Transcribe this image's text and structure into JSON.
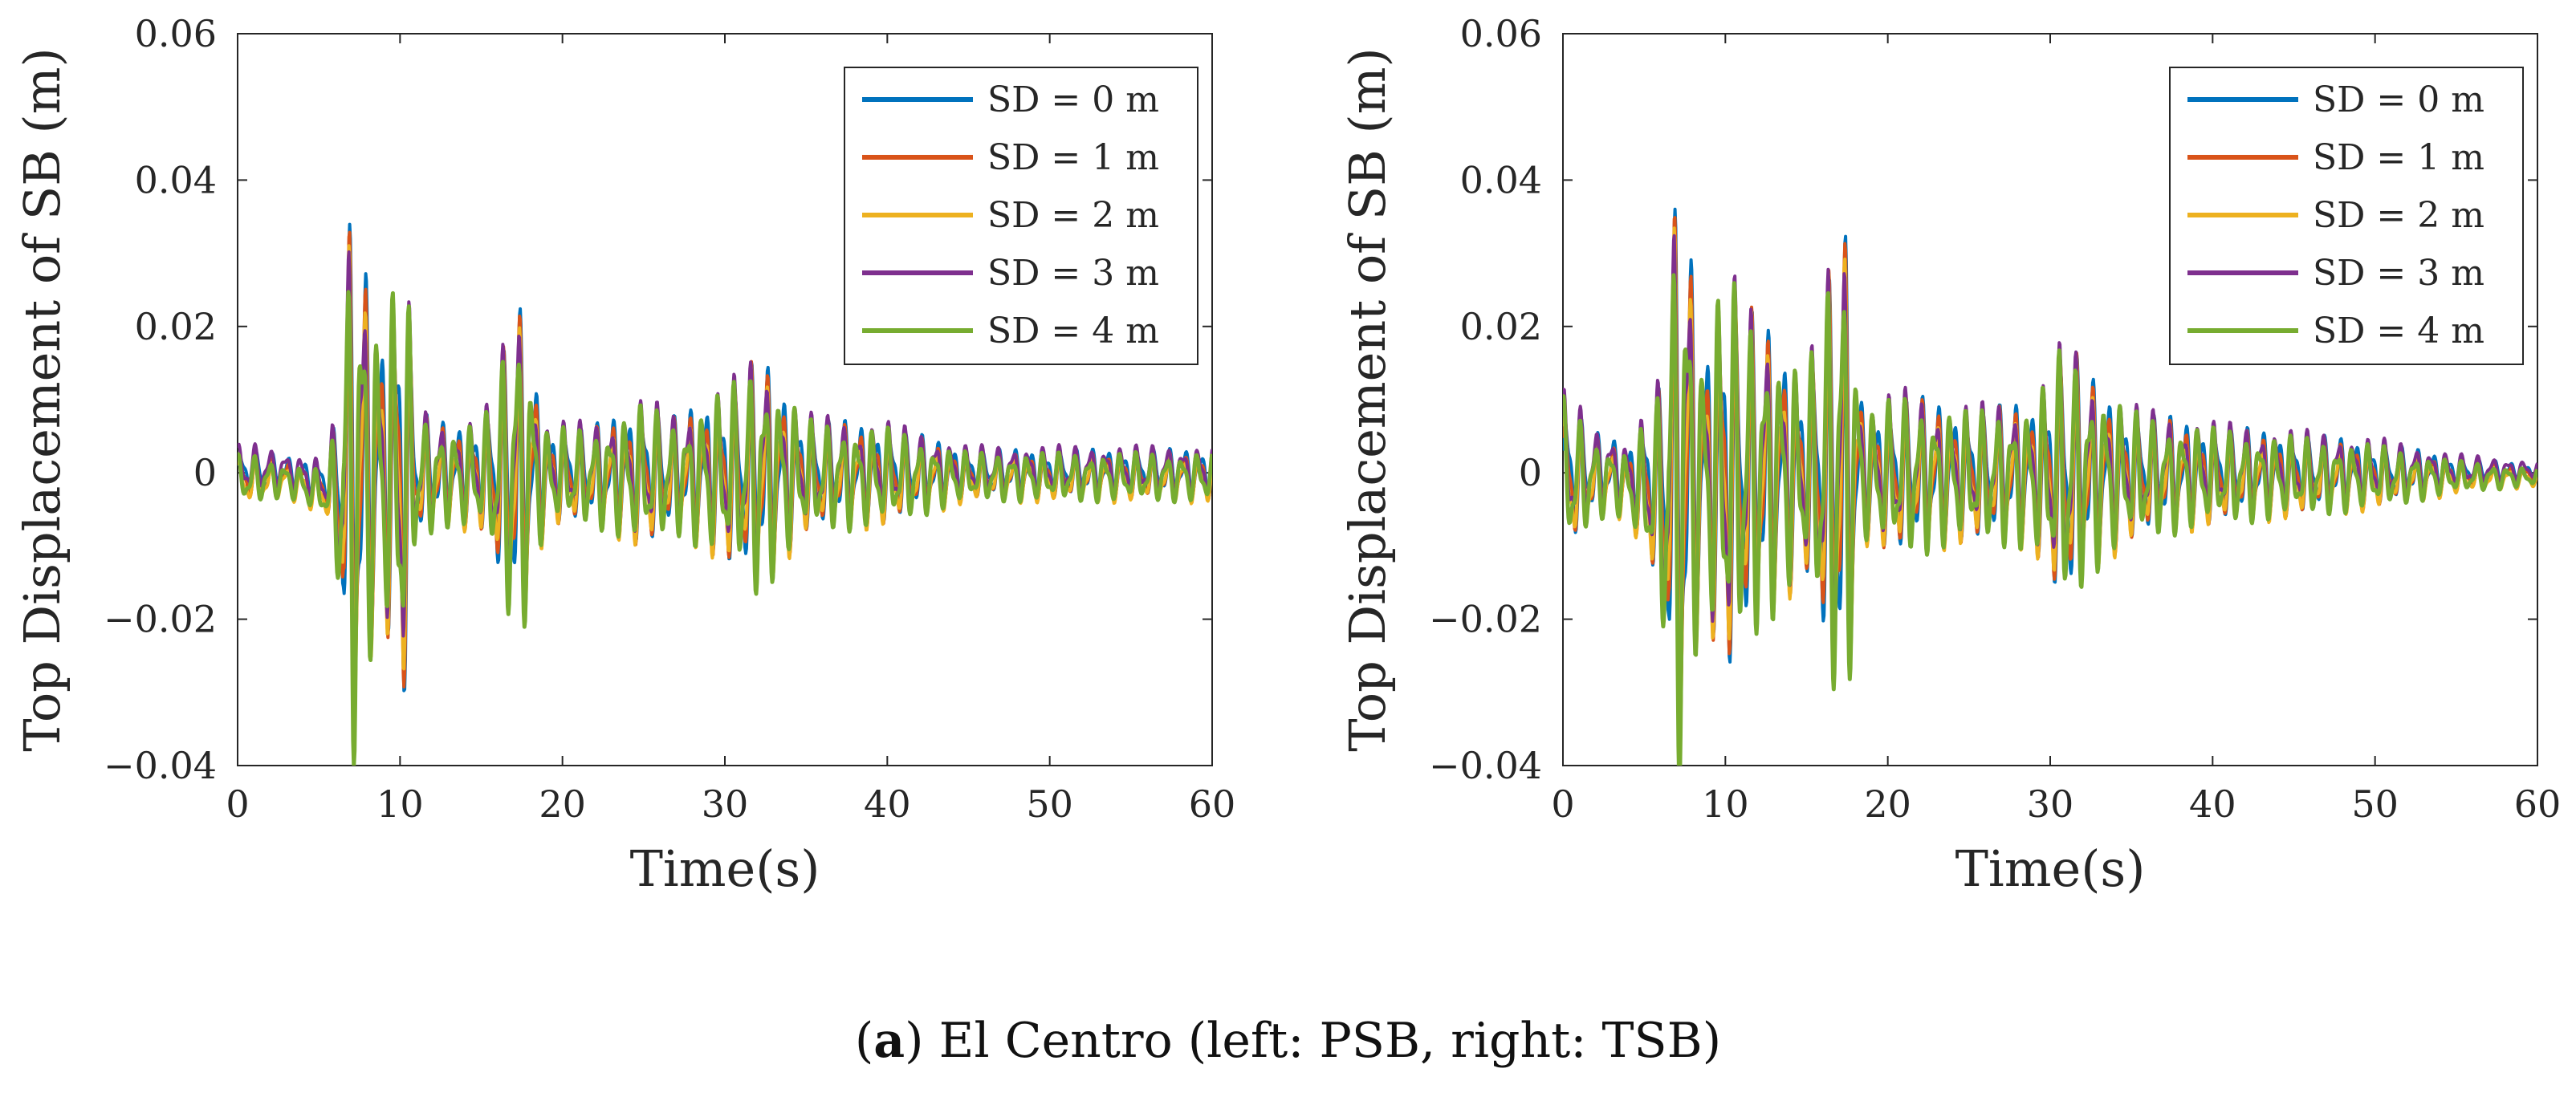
{
  "caption": {
    "label": "a",
    "text": "El Centro (left: PSB, right: TSB)"
  },
  "chart_data": [
    {
      "type": "line",
      "panel": "left",
      "title": "",
      "xlabel": "Time(s)",
      "ylabel": "Top Displacement of SB (m)",
      "xlim": [
        0,
        60
      ],
      "ylim": [
        -0.04,
        0.06
      ],
      "xticks": [
        0,
        10,
        20,
        30,
        40,
        50,
        60
      ],
      "xtick_labels": [
        "0",
        "10",
        "20",
        "30",
        "40",
        "50",
        "60"
      ],
      "yticks": [
        -0.04,
        -0.02,
        0,
        0.02,
        0.04,
        0.06
      ],
      "ytick_labels": [
        "−0.04",
        "−0.02",
        "0",
        "0.02",
        "0.04",
        "0.06"
      ],
      "legend_position": "top-right",
      "series": [
        {
          "name": "SD = 0 m",
          "color": "#0072BD",
          "offset": 0.0,
          "scale": 0.97
        },
        {
          "name": "SD = 1 m",
          "color": "#D95319",
          "offset": -0.0004,
          "scale": 0.98
        },
        {
          "name": "SD = 2 m",
          "color": "#EDB120",
          "offset": -0.0008,
          "scale": 0.99
        },
        {
          "name": "SD = 3 m",
          "color": "#7E2F8E",
          "offset": 0.0004,
          "scale": 1.0
        },
        {
          "name": "SD = 4 m",
          "color": "#77AC30",
          "offset": -0.0006,
          "scale": 1.0
        }
      ],
      "envelope": {
        "t": [
          0,
          1,
          3,
          5.5,
          6.2,
          7.1,
          8.2,
          9.1,
          10.2,
          11,
          13,
          15.2,
          17.2,
          19,
          22,
          25,
          27,
          31,
          32,
          35,
          40,
          45,
          50,
          55,
          60
        ],
        "amp": [
          0.003,
          0.003,
          0.002,
          0.003,
          0.012,
          0.036,
          0.022,
          0.018,
          0.03,
          0.008,
          0.006,
          0.007,
          0.022,
          0.006,
          0.006,
          0.009,
          0.007,
          0.012,
          0.015,
          0.007,
          0.006,
          0.003,
          0.003,
          0.003,
          0.003
        ]
      }
    },
    {
      "type": "line",
      "panel": "right",
      "title": "",
      "xlabel": "Time(s)",
      "ylabel": "Top Displacement of SB (m)",
      "xlim": [
        0,
        60
      ],
      "ylim": [
        -0.04,
        0.06
      ],
      "xticks": [
        0,
        10,
        20,
        30,
        40,
        50,
        60
      ],
      "xtick_labels": [
        "0",
        "10",
        "20",
        "30",
        "40",
        "50",
        "60"
      ],
      "yticks": [
        -0.04,
        -0.02,
        0,
        0.02,
        0.04,
        0.06
      ],
      "ytick_labels": [
        "−0.04",
        "−0.02",
        "0",
        "0.02",
        "0.04",
        "0.06"
      ],
      "legend_position": "top-right",
      "series": [
        {
          "name": "SD = 0 m",
          "color": "#0072BD",
          "offset": 0.0,
          "scale": 0.97
        },
        {
          "name": "SD = 1 m",
          "color": "#D95319",
          "offset": -0.0004,
          "scale": 0.98
        },
        {
          "name": "SD = 2 m",
          "color": "#EDB120",
          "offset": -0.0008,
          "scale": 0.99
        },
        {
          "name": "SD = 3 m",
          "color": "#7E2F8E",
          "offset": 0.0004,
          "scale": 1.0
        },
        {
          "name": "SD = 4 m",
          "color": "#77AC30",
          "offset": -0.0006,
          "scale": 1.0
        }
      ],
      "envelope": {
        "t": [
          0,
          0.5,
          2,
          4,
          5.8,
          7.3,
          8.5,
          10,
          11,
          13,
          15,
          17.2,
          18.5,
          21,
          25,
          29,
          31,
          32.5,
          35,
          40,
          45,
          50,
          55,
          60
        ],
        "amp": [
          0.01,
          0.009,
          0.005,
          0.004,
          0.012,
          0.04,
          0.015,
          0.025,
          0.022,
          0.017,
          0.012,
          0.033,
          0.008,
          0.01,
          0.008,
          0.009,
          0.017,
          0.012,
          0.008,
          0.006,
          0.005,
          0.004,
          0.002,
          0.001
        ]
      }
    }
  ]
}
